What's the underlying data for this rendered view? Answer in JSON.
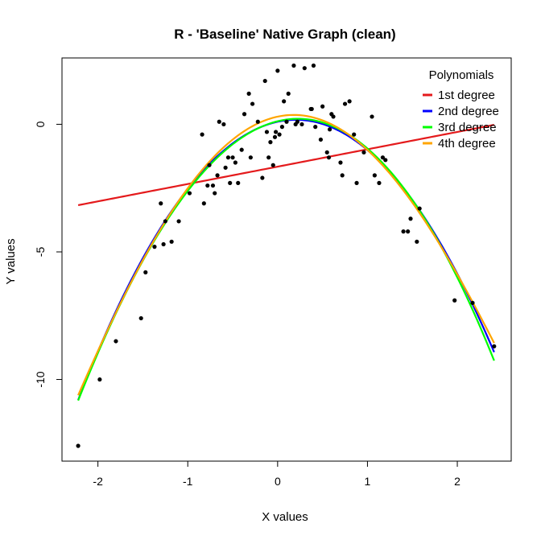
{
  "chart_data": {
    "type": "scatter",
    "title": "R - 'Baseline' Native Graph (clean)",
    "xlabel": "X values",
    "ylabel": "Y values",
    "xlim": [
      -2.4,
      2.6
    ],
    "ylim": [
      -13.2,
      2.6
    ],
    "xticks": [
      -2,
      -1,
      0,
      1,
      2
    ],
    "yticks": [
      0,
      -5,
      -10
    ],
    "grid": false,
    "legend": {
      "title": "Polynomials",
      "position": "top-right",
      "entries": [
        {
          "label": "1st degree",
          "color": "#e41a1c"
        },
        {
          "label": "2nd degree",
          "color": "#0000ff"
        },
        {
          "label": "3rd degree",
          "color": "#00ff00"
        },
        {
          "label": "4th degree",
          "color": "#ffa500"
        }
      ]
    },
    "points": {
      "x": [
        -2.22,
        -1.98,
        -1.8,
        -1.52,
        -1.47,
        -1.37,
        -1.3,
        -1.27,
        -1.25,
        -1.18,
        -1.1,
        -0.98,
        -0.84,
        -0.82,
        -0.78,
        -0.76,
        -0.72,
        -0.7,
        -0.67,
        -0.65,
        -0.6,
        -0.58,
        -0.55,
        -0.53,
        -0.5,
        -0.47,
        -0.44,
        -0.4,
        -0.37,
        -0.32,
        -0.3,
        -0.28,
        -0.22,
        -0.17,
        -0.14,
        -0.12,
        -0.1,
        -0.08,
        -0.05,
        -0.03,
        -0.02,
        0.0,
        0.02,
        0.05,
        0.07,
        0.1,
        0.12,
        0.18,
        0.2,
        0.22,
        0.27,
        0.3,
        0.37,
        0.38,
        0.4,
        0.42,
        0.48,
        0.5,
        0.55,
        0.57,
        0.58,
        0.6,
        0.62,
        0.7,
        0.72,
        0.75,
        0.8,
        0.85,
        0.88,
        0.96,
        1.05,
        1.08,
        1.13,
        1.17,
        1.2,
        1.4,
        1.45,
        1.48,
        1.55,
        1.58,
        1.97,
        2.17,
        2.41
      ],
      "y": [
        -12.6,
        -10.0,
        -8.5,
        -7.6,
        -5.8,
        -4.8,
        -3.1,
        -4.7,
        -3.8,
        -4.6,
        -3.8,
        -2.7,
        -0.4,
        -3.1,
        -2.4,
        -1.6,
        -2.4,
        -2.7,
        -2.0,
        0.1,
        0.0,
        -1.7,
        -1.3,
        -2.3,
        -1.3,
        -1.5,
        -2.3,
        -1.0,
        0.4,
        1.2,
        -1.3,
        0.8,
        0.1,
        -2.1,
        1.7,
        -0.3,
        -1.3,
        -0.7,
        -1.6,
        -0.5,
        -0.3,
        2.1,
        -0.4,
        -0.1,
        0.9,
        0.1,
        1.2,
        2.3,
        0.0,
        0.1,
        0.0,
        2.2,
        0.6,
        0.6,
        2.3,
        -0.1,
        -0.6,
        0.7,
        -1.1,
        -1.3,
        -0.2,
        0.4,
        0.3,
        -1.5,
        -2.0,
        0.8,
        0.9,
        -0.4,
        -2.3,
        -1.1,
        0.3,
        -2.0,
        -2.3,
        -1.3,
        -1.4,
        -4.2,
        -4.2,
        -3.7,
        -4.6,
        -3.3,
        -6.9,
        -7.0,
        -8.7
      ]
    },
    "series": [
      {
        "name": "1st degree",
        "color": "#e41a1c",
        "coefficients": [
          -1.66,
          0.68
        ]
      },
      {
        "name": "2nd degree",
        "color": "#0000ff",
        "coefficients": [
          0.1,
          0.76,
          -1.87
        ]
      },
      {
        "name": "3rd degree",
        "color": "#00ff00",
        "coefficients": [
          0.12,
          0.86,
          -1.9,
          -0.03
        ]
      },
      {
        "name": "4th degree",
        "color": "#ffa500",
        "coefficients": [
          0.3,
          0.75,
          -2.1,
          0.0,
          0.045
        ]
      }
    ],
    "fit_range": [
      -2.22,
      2.41
    ]
  }
}
